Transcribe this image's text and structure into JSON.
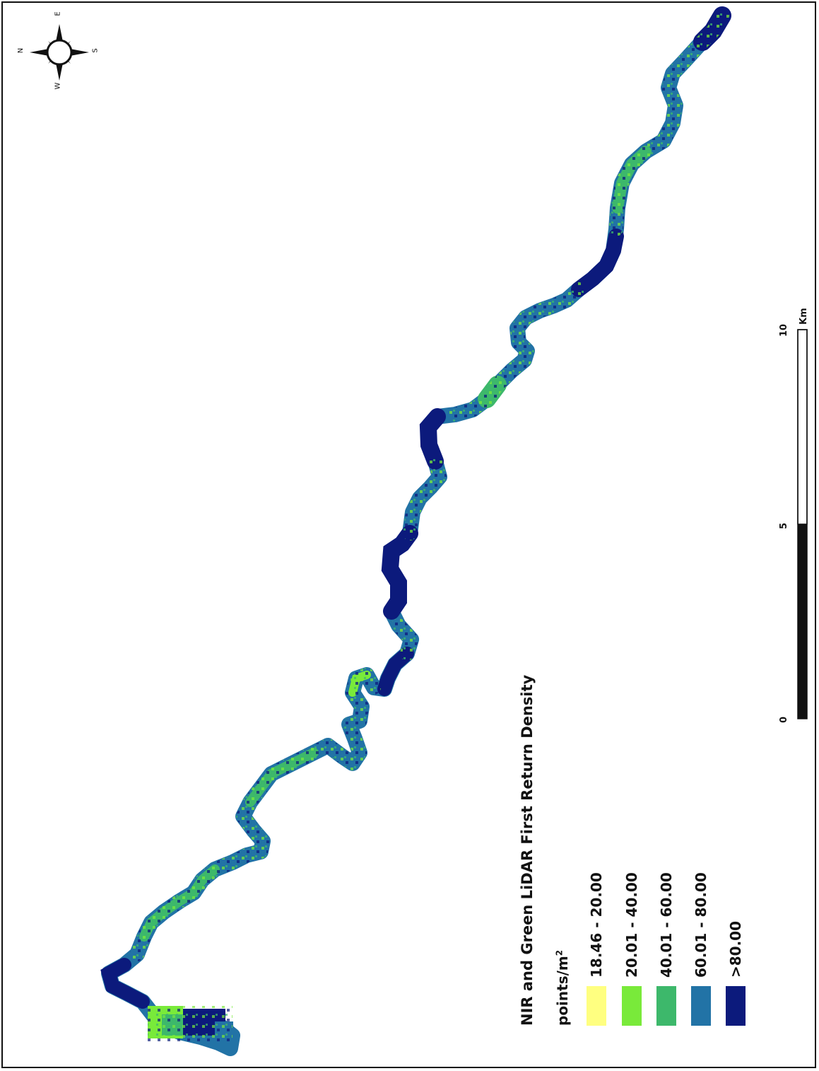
{
  "legend": {
    "title": "NIR and Green LiDAR First Return Density",
    "units_base": "points/m",
    "units_exp": "2",
    "classes": [
      {
        "label": "18.46 - 20.00",
        "color": "#ffff80"
      },
      {
        "label": "20.01 - 40.00",
        "color": "#79ea3a"
      },
      {
        "label": "40.01 - 60.00",
        "color": "#3db86b"
      },
      {
        "label": "60.01 - 80.00",
        "color": "#2273a6"
      },
      {
        "label": ">80.00",
        "color": "#0c1a7c"
      }
    ]
  },
  "scale_bar": {
    "ticks": [
      "0",
      "5",
      "10"
    ],
    "unit": "Km"
  },
  "compass": {
    "n": "N",
    "e": "E",
    "s": "S",
    "w": "W"
  }
}
